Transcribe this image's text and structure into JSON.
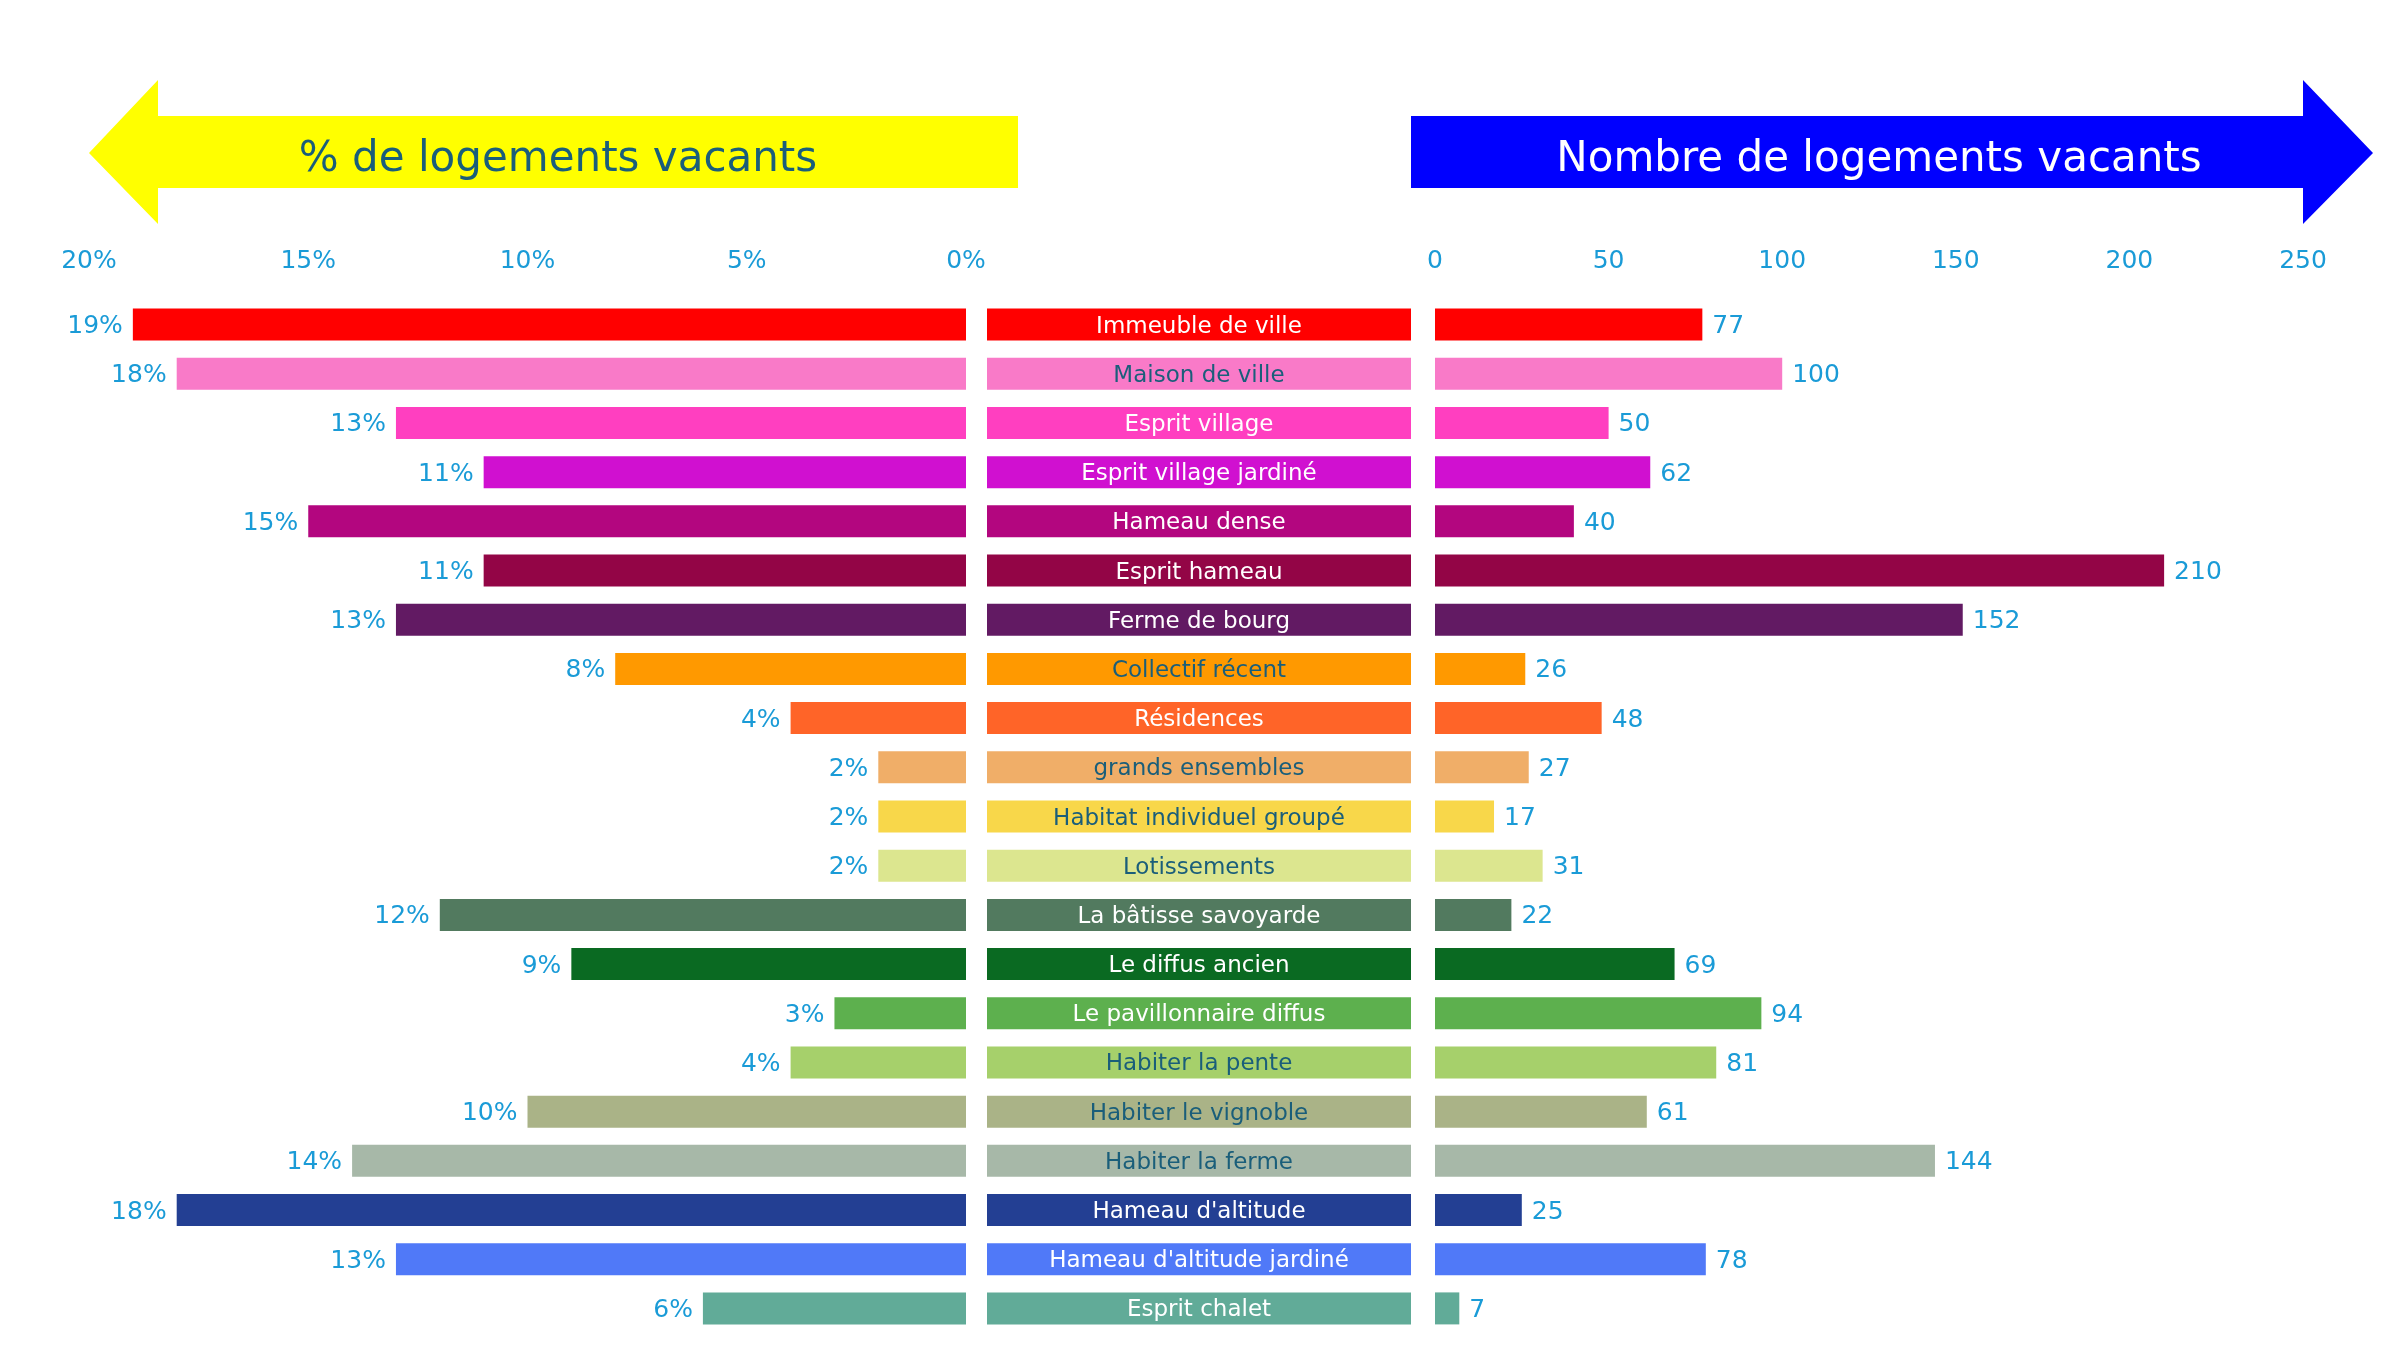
{
  "chart_data": [
    {
      "type": "bar",
      "orientation": "horizontal",
      "title": "% de logements vacants",
      "categories": [
        "Immeuble de ville",
        "Maison de ville",
        "Esprit village",
        "Esprit village jardiné",
        "Hameau dense",
        "Esprit hameau",
        "Ferme de bourg",
        "Collectif récent",
        "Résidences",
        "grands ensembles",
        "Habitat individuel groupé",
        "Lotissements",
        "La bâtisse savoyarde",
        "Le diffus ancien",
        "Le pavillonnaire diffus",
        "Habiter la pente",
        "Habiter le vignoble",
        "Habiter la ferme",
        "Hameau d'altitude",
        "Hameau d'altitude jardiné",
        "Esprit chalet"
      ],
      "values": [
        19,
        18,
        13,
        11,
        15,
        11,
        13,
        8,
        4,
        2,
        2,
        2,
        12,
        9,
        3,
        4,
        10,
        14,
        18,
        13,
        6
      ],
      "value_labels": [
        "19%",
        "18%",
        "13%",
        "11%",
        "15%",
        "11%",
        "13%",
        "8%",
        "4%",
        "2%",
        "2%",
        "2%",
        "12%",
        "9%",
        "3%",
        "4%",
        "10%",
        "14%",
        "18%",
        "13%",
        "6%"
      ],
      "colors": [
        "#ff0000",
        "#f97ac8",
        "#ff3fc0",
        "#d010d0",
        "#b3067f",
        "#930546",
        "#621a63",
        "#ff9900",
        "#ff6428",
        "#f0ae68",
        "#f8d74a",
        "#dce68f",
        "#527a5f",
        "#0a6a22",
        "#5db04e",
        "#a6d06b",
        "#aab387",
        "#a7b8a8",
        "#233f93",
        "#5079f8",
        "#61ab98"
      ],
      "xlim": [
        20,
        0
      ],
      "xticks": [
        {
          "value": 20,
          "label": "20%"
        },
        {
          "value": 15,
          "label": "15%"
        },
        {
          "value": 10,
          "label": "10%"
        },
        {
          "value": 5,
          "label": "5%"
        },
        {
          "value": 0,
          "label": "0%"
        }
      ]
    },
    {
      "type": "bar",
      "orientation": "horizontal",
      "title": "Nombre de logements vacants",
      "categories": [
        null,
        null,
        null,
        null,
        null,
        null,
        null,
        null,
        null,
        null,
        null,
        null,
        null,
        null,
        null,
        null,
        null,
        null,
        null,
        null,
        null
      ],
      "values": [
        77,
        100,
        50,
        62,
        40,
        210,
        152,
        26,
        48,
        27,
        17,
        31,
        22,
        69,
        94,
        81,
        61,
        144,
        25,
        78,
        7
      ],
      "data_labels": true,
      "colors": [
        "#ff0000",
        "#f97ac8",
        "#ff3fc0",
        "#d010d0",
        "#b3067f",
        "#930546",
        "#621a63",
        "#ff9900",
        "#ff6428",
        "#f0ae68",
        "#f8d74a",
        "#dce68f",
        "#527a5f",
        "#0a6a22",
        "#5db04e",
        "#a6d06b",
        "#aab387",
        "#a7b8a8",
        "#233f93",
        "#5079f8",
        "#61ab98"
      ],
      "xlim": [
        0,
        250
      ],
      "xticks": [
        0,
        50,
        100,
        150,
        200,
        250
      ],
      "tick_labels": "x"
    }
  ]
}
